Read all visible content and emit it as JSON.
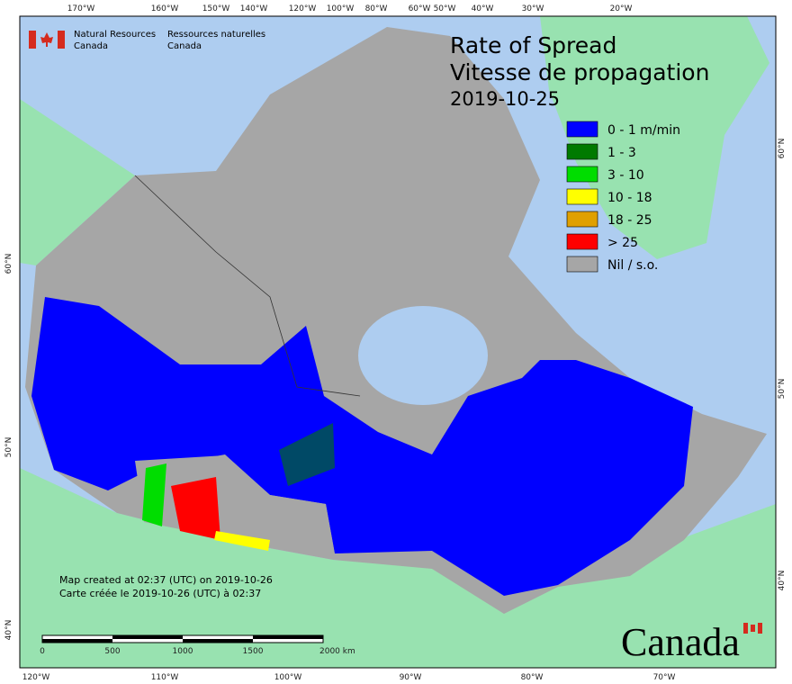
{
  "header": {
    "agency_en": [
      "Natural Resources",
      "Canada"
    ],
    "agency_fr": [
      "Ressources naturelles",
      "Canada"
    ]
  },
  "title": [
    "Rate of Spread",
    "Vitesse de propagation"
  ],
  "date": "2019-10-25",
  "legend": [
    {
      "label": "0 - 1 m/min",
      "color": "#0000ff"
    },
    {
      "label": "1 - 3",
      "color": "#007a00"
    },
    {
      "label": "3 - 10",
      "color": "#00dd00"
    },
    {
      "label": "10 - 18",
      "color": "#ffff00"
    },
    {
      "label": "18 - 25",
      "color": "#e0a000"
    },
    {
      "label": "> 25",
      "color": "#ff0000"
    },
    {
      "label": "Nil / s.o.",
      "color": "#a6a6a6"
    }
  ],
  "graticule": {
    "top": [
      "170°W",
      "160°W",
      "150°W",
      "140°W",
      "120°W",
      "100°W",
      "80°W",
      "60°W",
      "50°W",
      "40°W",
      "30°W",
      "20°W"
    ],
    "bottom": [
      "120°W",
      "110°W",
      "100°W",
      "90°W",
      "80°W",
      "70°W"
    ],
    "left": [
      "60°N",
      "50°N",
      "40°N"
    ],
    "right": [
      "60°N",
      "50°N",
      "40°N"
    ]
  },
  "credits": [
    "Map created at 02:37 (UTC) on 2019-10-26",
    "Carte créée le 2019-10-26 (UTC) à 02:37"
  ],
  "scale_bar": [
    "0",
    "500",
    "1000",
    "1500",
    "2000 km"
  ],
  "wordmark": "Canada"
}
